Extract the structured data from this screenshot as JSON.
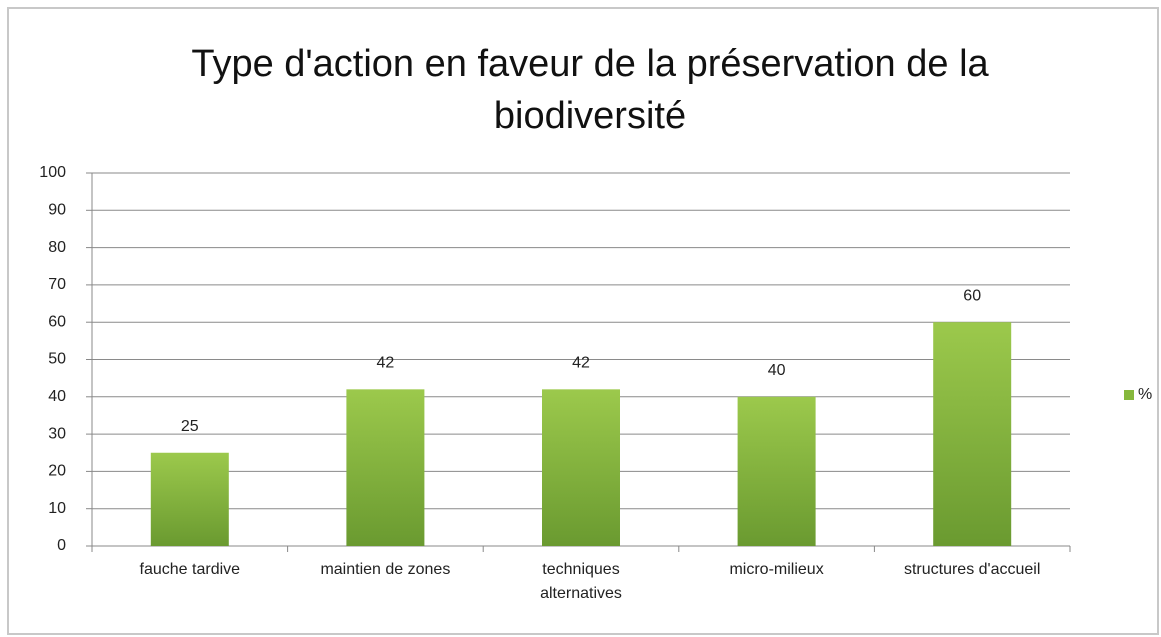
{
  "chart_data": {
    "type": "bar",
    "title": "Type d'action en faveur de la préservation de la biodiversité",
    "categories": [
      "fauche tardive",
      "maintien de zones",
      "techniques alternatives",
      "micro-milieux",
      "structures d'accueil"
    ],
    "series": [
      {
        "name": "%",
        "color": "#86b83c",
        "values": [
          25,
          42,
          42,
          40,
          60
        ]
      }
    ],
    "ylim": [
      0,
      100
    ],
    "yticks": [
      0,
      10,
      20,
      30,
      40,
      50,
      60,
      70,
      80,
      90,
      100
    ],
    "grid": true,
    "legend": "right"
  }
}
